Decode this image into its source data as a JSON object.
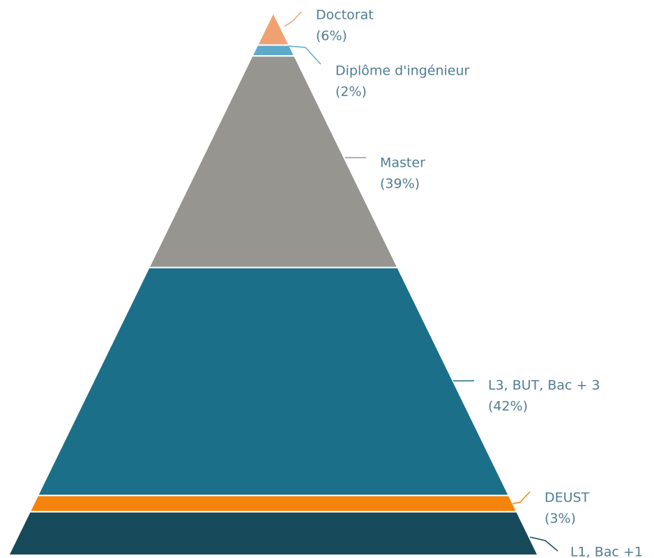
{
  "chart_data": {
    "type": "pyramid",
    "categories": [
      "Doctorat",
      "Diplôme d'ingénieur",
      "Master",
      "L3, BUT, Bac + 3",
      "DEUST",
      "L1, Bac +1"
    ],
    "values": [
      6,
      2,
      39,
      42,
      3,
      8
    ],
    "value_labels": [
      "(6%)",
      "(2%)",
      "(39%)",
      "(42%)",
      "(3%)",
      null
    ],
    "colors": [
      "#f0a172",
      "#5eaacb",
      "#979590",
      "#1c6f89",
      "#f5840c",
      "#164a5b"
    ]
  }
}
